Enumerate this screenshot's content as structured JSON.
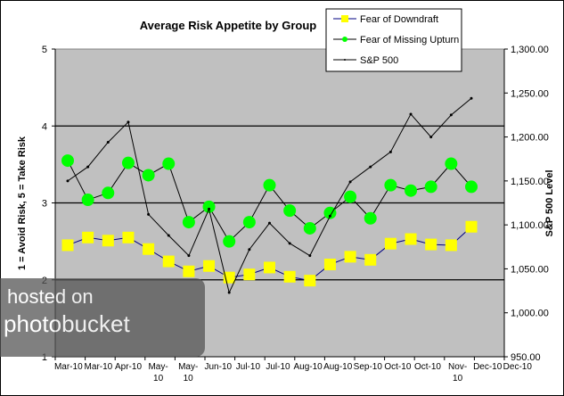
{
  "chart_data": {
    "type": "line",
    "title": "Average Risk Appetite by Group",
    "ylabel": "1 = Avoid Risk, 5 = Take Risk",
    "y2label": "S&P 500 Level",
    "ylim": [
      1,
      5
    ],
    "y2lim": [
      950,
      1300
    ],
    "yticks": [
      "1",
      "2",
      "3",
      "4",
      "5"
    ],
    "y2ticks": [
      "950.00",
      "1,000.00",
      "1,050.00",
      "1,100.00",
      "1,150.00",
      "1,200.00",
      "1,250.00",
      "1,300.00"
    ],
    "xtick_labels": [
      "Mar-10",
      "Mar-10",
      "Apr-10",
      "May-10",
      "May-10",
      "Jun-10",
      "Jul-10",
      "Jul-10",
      "Aug-10",
      "Aug-10",
      "Sep-10",
      "Oct-10",
      "Oct-10",
      "Nov-10",
      "Dec-10",
      "Dec-10"
    ],
    "grid": "horizontal major lines on primary axis",
    "legend_position": "top-right",
    "plot_background": "#c0c0c0",
    "series": [
      {
        "name": "Fear of Downdraft",
        "axis": "left",
        "marker": "square",
        "marker_color": "#ffff00",
        "line_color": "#000080",
        "values": [
          2.45,
          2.55,
          2.51,
          2.55,
          2.4,
          2.24,
          2.11,
          2.18,
          2.03,
          2.07,
          2.16,
          2.04,
          1.99,
          2.2,
          2.3,
          2.26,
          2.47,
          2.53,
          2.46,
          2.45,
          2.69
        ]
      },
      {
        "name": "Fear of Missing Upturn",
        "axis": "left",
        "marker": "circle",
        "marker_color": "#00ff00",
        "line_color": "#000000",
        "values": [
          3.55,
          3.04,
          3.13,
          3.52,
          3.36,
          3.51,
          2.75,
          2.95,
          2.5,
          2.75,
          3.23,
          2.9,
          2.67,
          2.87,
          3.08,
          2.8,
          3.23,
          3.16,
          3.21,
          3.51,
          3.21
        ]
      },
      {
        "name": "S&P 500",
        "axis": "right",
        "marker": "dot",
        "marker_color": "#000000",
        "line_color": "#000000",
        "values": [
          1150,
          1166,
          1194,
          1217,
          1112,
          1088,
          1065,
          1118,
          1023,
          1072,
          1102,
          1079,
          1065,
          1110,
          1149,
          1166,
          1183,
          1226,
          1200,
          1225,
          1244
        ]
      }
    ]
  },
  "watermark": {
    "line1": "hosted on",
    "line2": "photobucket"
  }
}
